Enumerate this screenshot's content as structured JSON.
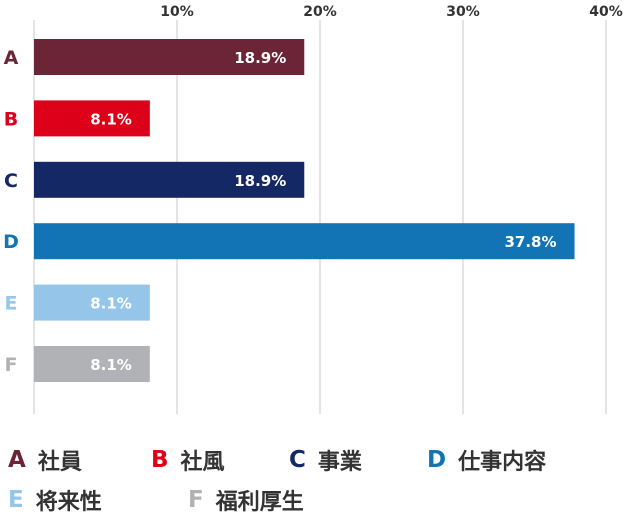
{
  "chart_data": {
    "type": "bar",
    "orientation": "horizontal",
    "categories": [
      "A",
      "B",
      "C",
      "D",
      "E",
      "F"
    ],
    "values": [
      18.9,
      8.1,
      18.9,
      37.8,
      8.1,
      8.1
    ],
    "value_labels": [
      "18.9%",
      "8.1%",
      "18.9%",
      "37.8%",
      "8.1%",
      "8.1%"
    ],
    "colors": [
      "#6b2536",
      "#dc0018",
      "#142865",
      "#1274b5",
      "#95c6ea",
      "#b0b2b5"
    ],
    "xlim": [
      0,
      40
    ],
    "x_ticks": [
      10,
      20,
      30,
      40
    ],
    "x_tick_labels": [
      "10%",
      "20%",
      "30%",
      "40%"
    ],
    "grid": true,
    "legend_position": "bottom"
  },
  "legend": [
    {
      "letter": "A",
      "label": "社員",
      "color": "#6b2536"
    },
    {
      "letter": "B",
      "label": "社風",
      "color": "#dc0018"
    },
    {
      "letter": "C",
      "label": "事業",
      "color": "#142865"
    },
    {
      "letter": "D",
      "label": "仕事内容",
      "color": "#1274b5"
    },
    {
      "letter": "E",
      "label": "将来性",
      "color": "#95c6ea"
    },
    {
      "letter": "F",
      "label": "福利厚生",
      "color": "#b0b2b5"
    }
  ]
}
